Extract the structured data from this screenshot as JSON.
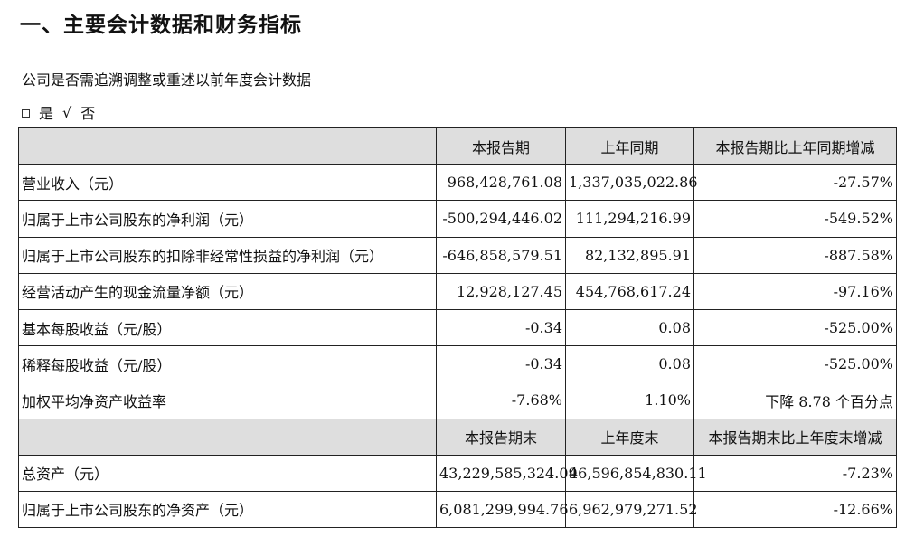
{
  "heading": "一、主要会计数据和财务指标",
  "question": "公司是否需追溯调整或重述以前年度会计数据",
  "answer": {
    "yes_mark": "□",
    "yes_label": "是",
    "no_mark": "√",
    "no_label": "否"
  },
  "table": {
    "header1": [
      "",
      "本报告期",
      "上年同期",
      "本报告期比上年同期增减"
    ],
    "rows1": [
      [
        "营业收入（元）",
        "968,428,761.08",
        "1,337,035,022.86",
        "-27.57%"
      ],
      [
        "归属于上市公司股东的净利润（元）",
        "-500,294,446.02",
        "111,294,216.99",
        "-549.52%"
      ],
      [
        "归属于上市公司股东的扣除非经常性损益的净利润（元）",
        "-646,858,579.51",
        "82,132,895.91",
        "-887.58%"
      ],
      [
        "经营活动产生的现金流量净额（元）",
        "12,928,127.45",
        "454,768,617.24",
        "-97.16%"
      ],
      [
        "基本每股收益（元/股）",
        "-0.34",
        "0.08",
        "-525.00%"
      ],
      [
        "稀释每股收益（元/股）",
        "-0.34",
        "0.08",
        "-525.00%"
      ],
      [
        "加权平均净资产收益率",
        "-7.68%",
        "1.10%",
        "下降 8.78 个百分点"
      ]
    ],
    "header2": [
      "",
      "本报告期末",
      "上年度末",
      "本报告期末比上年度末增减"
    ],
    "rows2": [
      [
        "总资产（元）",
        "43,229,585,324.09",
        "46,596,854,830.11",
        "-7.23%"
      ],
      [
        "归属于上市公司股东的净资产（元）",
        "6,081,299,994.76",
        "6,962,979,271.52",
        "-12.66%"
      ]
    ]
  }
}
